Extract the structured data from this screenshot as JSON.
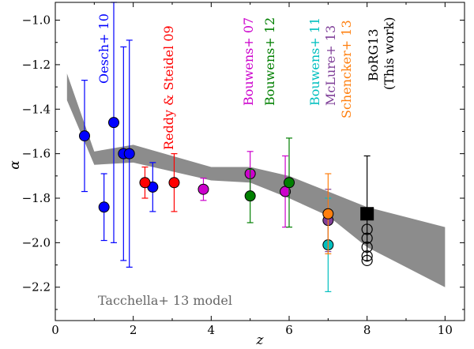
{
  "chart_data": {
    "type": "scatter",
    "xlabel": "z",
    "ylabel": "α",
    "xlim": [
      0,
      10.5
    ],
    "ylim": [
      -2.35,
      -0.92
    ],
    "xticks": [
      0,
      2,
      4,
      6,
      8,
      10
    ],
    "yticks": [
      -1.0,
      -1.2,
      -1.4,
      -1.6,
      -1.8,
      -2.0,
      -2.2
    ],
    "xtick_labels": [
      "0",
      "2",
      "4",
      "6",
      "8",
      "10"
    ],
    "ytick_labels": [
      "−1.0",
      "−1.2",
      "−1.4",
      "−1.6",
      "−1.8",
      "−2.0",
      "−2.2"
    ],
    "grid": false,
    "model": {
      "name": "Tacchella+ 13 model",
      "color": "#8c8c8c",
      "upper": [
        [
          0.3,
          -1.24
        ],
        [
          1.0,
          -1.59
        ],
        [
          2.0,
          -1.56
        ],
        [
          4.0,
          -1.66
        ],
        [
          5.0,
          -1.66
        ],
        [
          6.0,
          -1.7
        ],
        [
          7.0,
          -1.77
        ],
        [
          8.0,
          -1.84
        ],
        [
          10.0,
          -1.93
        ]
      ],
      "lower": [
        [
          0.3,
          -1.36
        ],
        [
          1.0,
          -1.65
        ],
        [
          2.0,
          -1.64
        ],
        [
          4.0,
          -1.72
        ],
        [
          5.0,
          -1.73
        ],
        [
          6.0,
          -1.8
        ],
        [
          7.0,
          -1.88
        ],
        [
          8.0,
          -2.02
        ],
        [
          10.0,
          -2.2
        ]
      ]
    },
    "series": [
      {
        "name": "Oesch+ 10",
        "color": "#0000ff",
        "points": [
          {
            "x": 0.75,
            "y": -1.52,
            "ylo": -1.77,
            "yhi": -1.27
          },
          {
            "x": 1.25,
            "y": -1.84,
            "ylo": -1.99,
            "yhi": -1.69
          },
          {
            "x": 1.5,
            "y": -1.46,
            "ylo": -2.0,
            "yhi": -0.92
          },
          {
            "x": 1.75,
            "y": -1.6,
            "ylo": -2.08,
            "yhi": -1.12
          },
          {
            "x": 1.9,
            "y": -1.6,
            "ylo": -2.11,
            "yhi": -1.09
          },
          {
            "x": 2.5,
            "y": -1.75,
            "ylo": -1.86,
            "yhi": -1.64
          }
        ]
      },
      {
        "name": "Reddy & Steidel 09",
        "color": "#ff0000",
        "points": [
          {
            "x": 2.3,
            "y": -1.73,
            "ylo": -1.8,
            "yhi": -1.66
          },
          {
            "x": 3.05,
            "y": -1.73,
            "ylo": -1.86,
            "yhi": -1.6
          }
        ]
      },
      {
        "name": "Bouwens+ 07",
        "color": "#cc00cc",
        "points": [
          {
            "x": 3.8,
            "y": -1.76,
            "ylo": -1.81,
            "yhi": -1.71
          },
          {
            "x": 5.0,
            "y": -1.69,
            "ylo": -1.79,
            "yhi": -1.59
          },
          {
            "x": 5.9,
            "y": -1.77,
            "ylo": -1.93,
            "yhi": -1.61
          }
        ]
      },
      {
        "name": "Bouwens+ 12",
        "color": "#007f00",
        "points": [
          {
            "x": 5.0,
            "y": -1.79,
            "ylo": -1.91,
            "yhi": -1.67
          },
          {
            "x": 6.0,
            "y": -1.73,
            "ylo": -1.93,
            "yhi": -1.53
          }
        ]
      },
      {
        "name": "Bouwens+ 11",
        "color": "#00bfbf",
        "points": [
          {
            "x": 7.0,
            "y": -2.01,
            "ylo": -2.22,
            "yhi": -1.8
          }
        ]
      },
      {
        "name": "McLure+ 13",
        "color": "#7f3f98",
        "points": [
          {
            "x": 7.0,
            "y": -1.9,
            "ylo": -2.04,
            "yhi": -1.76
          }
        ]
      },
      {
        "name": "Schencker+ 13",
        "color": "#ff7f0e",
        "points": [
          {
            "x": 7.0,
            "y": -1.87,
            "ylo": -2.05,
            "yhi": -1.69
          }
        ]
      },
      {
        "name": "BoRG13 (This work)",
        "color": "#000000",
        "marker": "square",
        "points": [
          {
            "x": 8.0,
            "y": -1.87,
            "ylo": -2.08,
            "yhi": -1.61
          }
        ],
        "open_circles": [
          -1.94,
          -1.98,
          -2.02,
          -2.06,
          -2.08
        ]
      }
    ],
    "labels": {
      "oesch": "Oesch+ 10",
      "reddy": "Reddy & Steidel 09",
      "bouwens07": "Bouwens+ 07",
      "bouwens12": "Bouwens+ 12",
      "bouwens11": "Bouwens+ 11",
      "mclure": "McLure+ 13",
      "schencker": "Schencker+ 13",
      "borg_line1": "BoRG13",
      "borg_line2": "(This work)",
      "model": "Tacchella+ 13 model"
    }
  }
}
